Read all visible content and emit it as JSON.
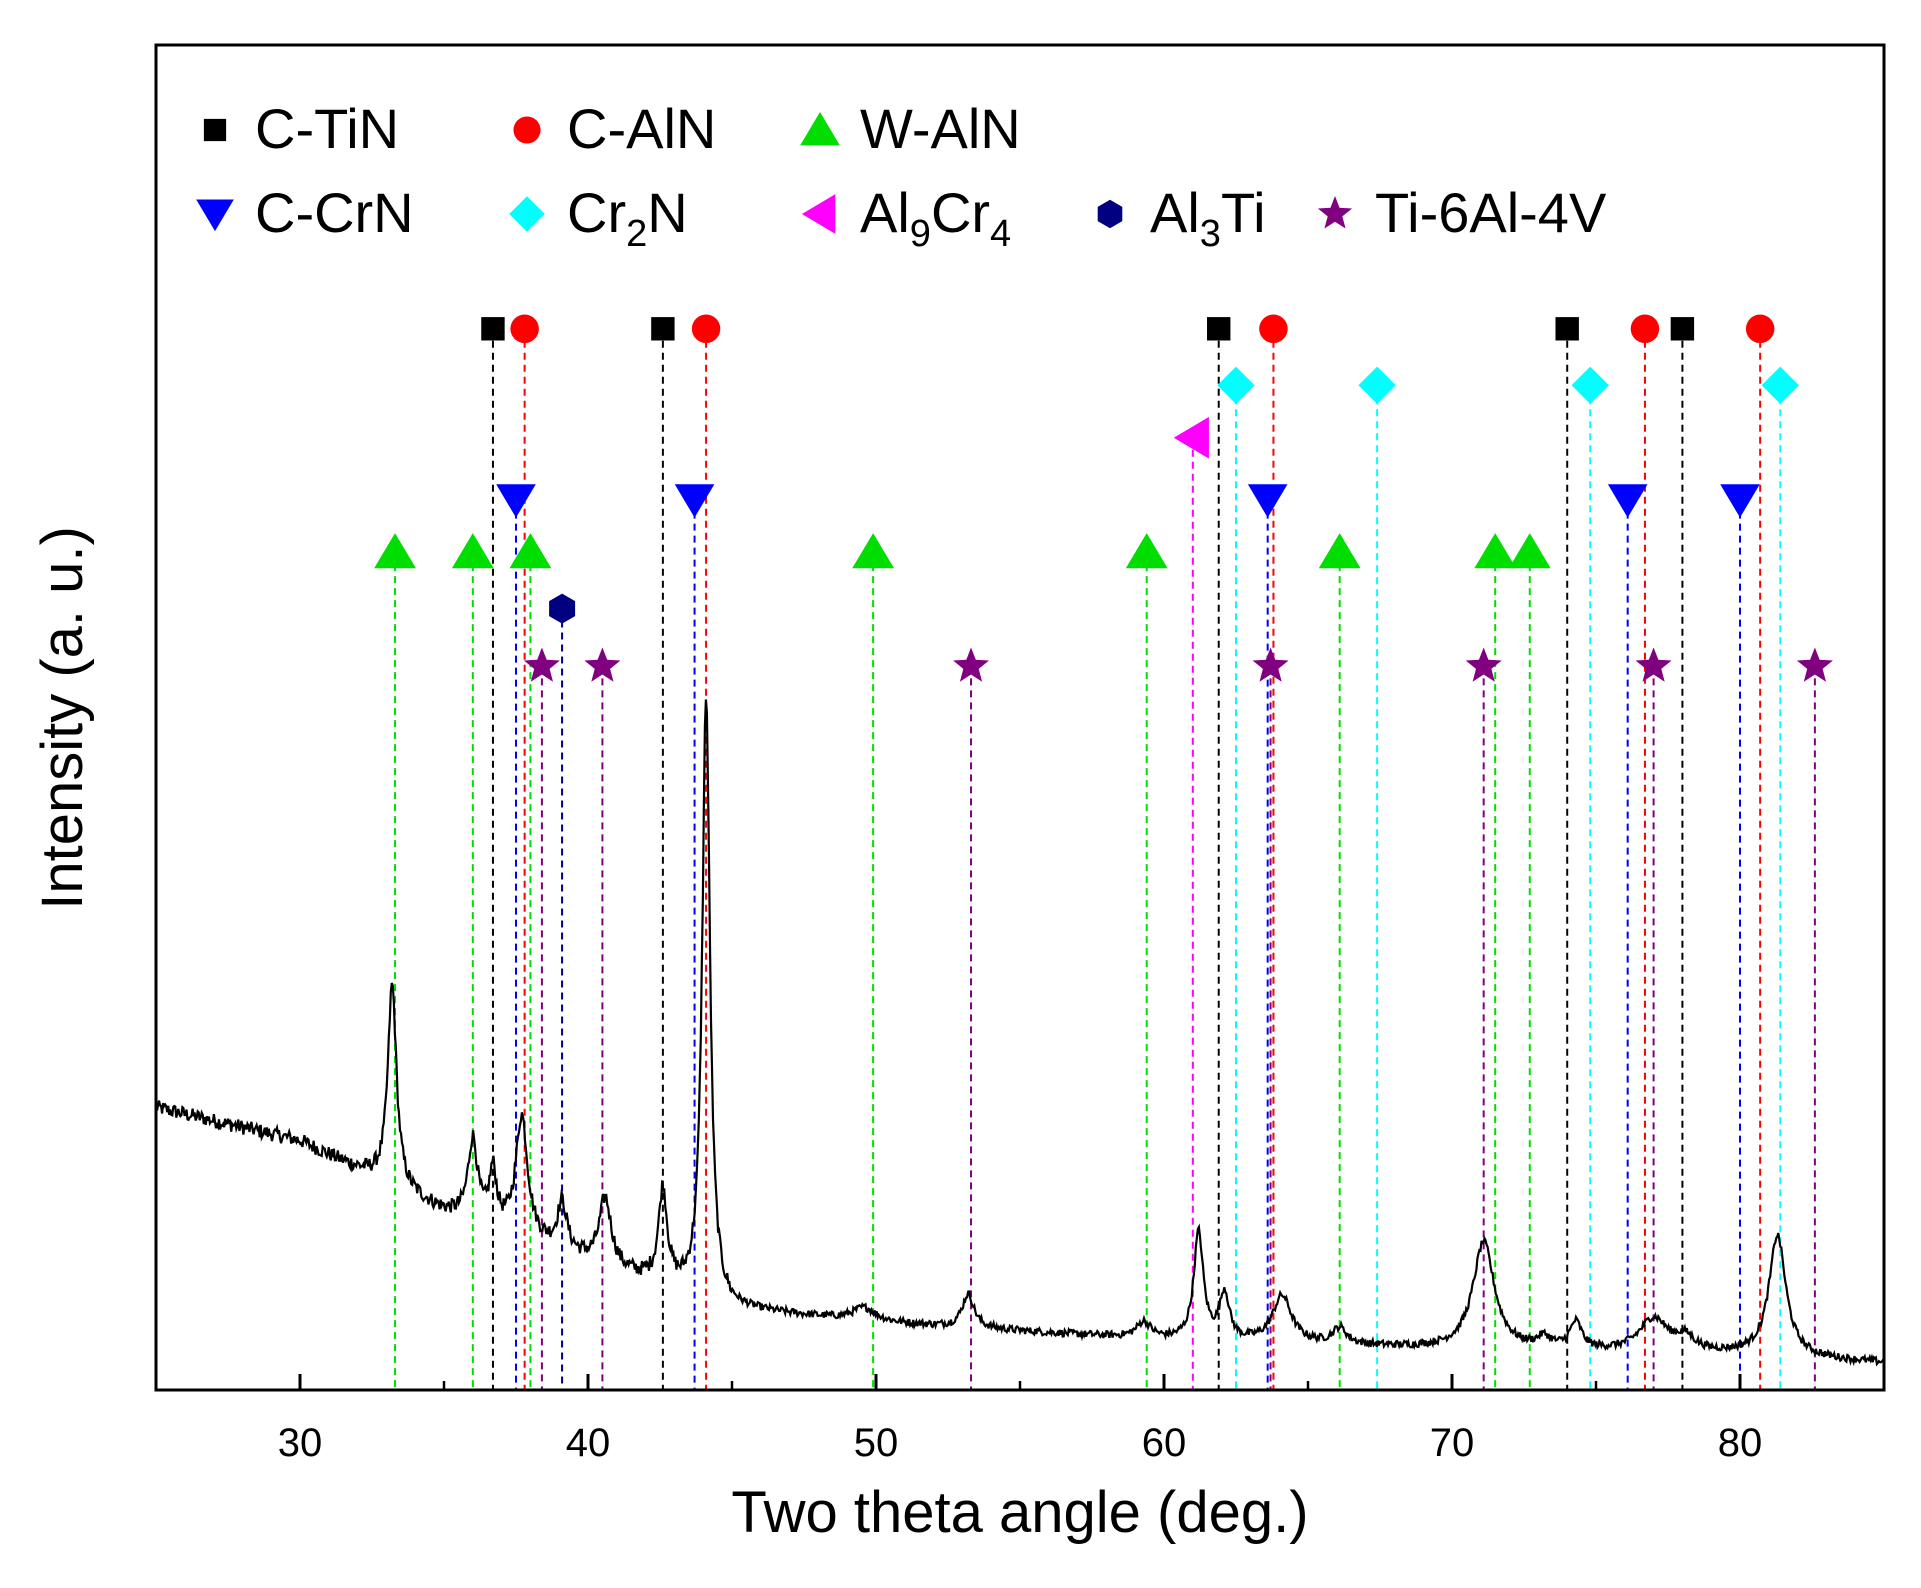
{
  "chart_data": {
    "type": "line",
    "xlabel": "Two theta angle (deg.)",
    "ylabel": "Intensity (a. u.)",
    "xlim": [
      25,
      85
    ],
    "ylim": [
      0,
      100
    ],
    "x_ticks": [
      30,
      40,
      50,
      60,
      70,
      80
    ],
    "y_ticks_labeled": false,
    "grid": false,
    "legend_position": "top-left inside plot",
    "series": [
      {
        "kind": "pattern",
        "color": "#000000",
        "baseline": [
          [
            25,
            21
          ],
          [
            30,
            18.5
          ],
          [
            35,
            13.2
          ],
          [
            40,
            9.5
          ],
          [
            45,
            6.0
          ],
          [
            50,
            5.0
          ],
          [
            60,
            3.7
          ],
          [
            70,
            3.0
          ],
          [
            80,
            2.6
          ],
          [
            85,
            2.0
          ]
        ],
        "peaks": [
          {
            "x": 33.2,
            "height": 15,
            "width": 0.18
          },
          {
            "x": 36.0,
            "height": 6,
            "width": 0.2
          },
          {
            "x": 36.7,
            "height": 4,
            "width": 0.15
          },
          {
            "x": 37.7,
            "height": 9,
            "width": 0.25
          },
          {
            "x": 39.1,
            "height": 3.5,
            "width": 0.2
          },
          {
            "x": 40.6,
            "height": 5,
            "width": 0.25
          },
          {
            "x": 42.6,
            "height": 7,
            "width": 0.18
          },
          {
            "x": 44.1,
            "height": 45,
            "width": 0.16
          },
          {
            "x": 49.6,
            "height": 1,
            "width": 0.5
          },
          {
            "x": 53.2,
            "height": 2.5,
            "width": 0.25
          },
          {
            "x": 59.3,
            "height": 1.2,
            "width": 0.3
          },
          {
            "x": 61.2,
            "height": 8,
            "width": 0.2
          },
          {
            "x": 62.1,
            "height": 3.5,
            "width": 0.2
          },
          {
            "x": 64.1,
            "height": 3.5,
            "width": 0.4
          },
          {
            "x": 66.1,
            "height": 1.2,
            "width": 0.3
          },
          {
            "x": 71.1,
            "height": 8,
            "width": 0.45
          },
          {
            "x": 73.2,
            "height": 0.8,
            "width": 0.3
          },
          {
            "x": 74.3,
            "height": 2,
            "width": 0.25
          },
          {
            "x": 77.0,
            "height": 2.5,
            "width": 0.6
          },
          {
            "x": 78.1,
            "height": 1,
            "width": 0.4
          },
          {
            "x": 81.3,
            "height": 9,
            "width": 0.35
          }
        ]
      }
    ],
    "phases": [
      {
        "name": "C-TiN",
        "marker": "square",
        "color": "#000000",
        "y": 78.9,
        "positions": [
          36.7,
          42.6,
          61.9,
          74.0,
          78.0
        ]
      },
      {
        "name": "C-AlN",
        "marker": "circle",
        "color": "#ff0000",
        "y": 78.9,
        "positions": [
          37.8,
          44.1,
          63.8,
          76.7,
          80.7
        ]
      },
      {
        "name": "W-AlN",
        "marker": "triangle-up",
        "color": "#00dd00",
        "y": 62.3,
        "positions": [
          33.3,
          36.0,
          38.0,
          49.9,
          59.4,
          66.1,
          71.5,
          72.7
        ]
      },
      {
        "name": "C-CrN",
        "marker": "triangle-down",
        "color": "#0000ff",
        "y": 66.2,
        "positions": [
          37.5,
          43.7,
          63.6,
          76.1,
          80.0
        ]
      },
      {
        "name": "Cr₂N",
        "name_main": "Cr",
        "name_sub": "2",
        "name_tail": "N",
        "marker": "diamond",
        "color": "#00ffff",
        "y": 74.7,
        "positions": [
          62.5,
          67.4,
          74.8,
          81.4
        ]
      },
      {
        "name": "Al₉Cr₄",
        "name_main": "Al",
        "name_sub": "9",
        "name_mid": "Cr",
        "name_sub2": "4",
        "marker": "triangle-left",
        "color": "#ff00ff",
        "y": 70.8,
        "positions": [
          61.0
        ]
      },
      {
        "name": "Al₃Ti",
        "name_main": "Al",
        "name_sub": "3",
        "name_tail": "Ti",
        "marker": "hexagon",
        "color": "#000080",
        "y": 58.1,
        "positions": [
          39.1
        ]
      },
      {
        "name": "Ti-6Al-4V",
        "marker": "star",
        "color": "#800080",
        "y": 53.8,
        "positions": [
          38.4,
          40.5,
          53.3,
          63.7,
          71.1,
          77.0,
          82.6
        ]
      }
    ],
    "legend": [
      [
        "C-TiN",
        "C-AlN",
        "W-AlN"
      ],
      [
        "C-CrN",
        "Cr₂N",
        "Al₉Cr₄",
        "Al₃Ti",
        "Ti-6Al-4V"
      ]
    ]
  }
}
